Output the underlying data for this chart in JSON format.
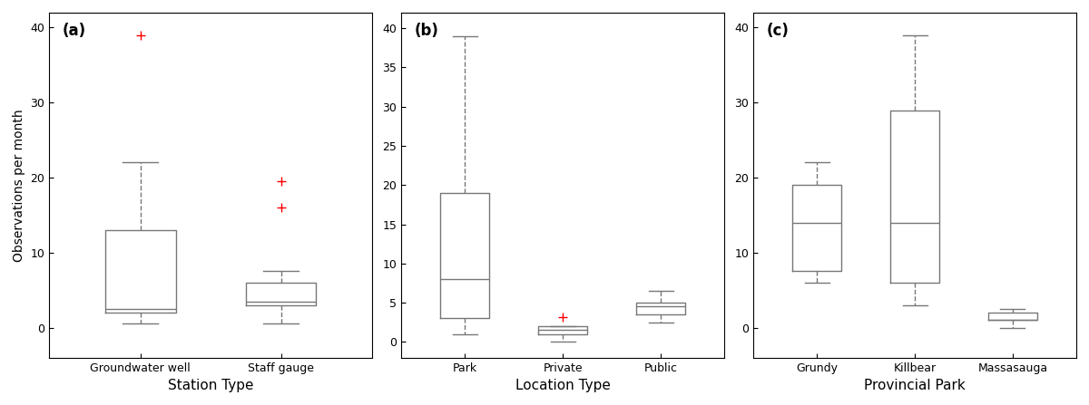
{
  "panel_a": {
    "label": "(a)",
    "xlabel": "Station Type",
    "ylabel": "Observations per month",
    "ylim": [
      -4,
      42
    ],
    "yticks": [
      0,
      10,
      20,
      30,
      40
    ],
    "categories": [
      "Groundwater well",
      "Staff gauge"
    ],
    "boxes": [
      {
        "q1": 2.0,
        "median": 2.5,
        "q3": 13.0,
        "whislo": 0.5,
        "whishi": 22.0,
        "fliers": [
          39.0
        ]
      },
      {
        "q1": 3.0,
        "median": 3.5,
        "q3": 6.0,
        "whislo": 0.5,
        "whishi": 7.5,
        "fliers": [
          16.0,
          19.5
        ]
      }
    ]
  },
  "panel_b": {
    "label": "(b)",
    "xlabel": "Location Type",
    "ylim": [
      -2,
      42
    ],
    "yticks": [
      0,
      5,
      10,
      15,
      20,
      25,
      30,
      35,
      40
    ],
    "categories": [
      "Park",
      "Private",
      "Public"
    ],
    "boxes": [
      {
        "q1": 3.0,
        "median": 8.0,
        "q3": 19.0,
        "whislo": 1.0,
        "whishi": 39.0,
        "fliers": []
      },
      {
        "q1": 1.0,
        "median": 1.5,
        "q3": 2.0,
        "whislo": 0.0,
        "whishi": 2.0,
        "fliers": [
          3.2
        ]
      },
      {
        "q1": 3.5,
        "median": 4.5,
        "q3": 5.0,
        "whislo": 2.5,
        "whishi": 6.5,
        "fliers": []
      }
    ]
  },
  "panel_c": {
    "label": "(c)",
    "xlabel": "Provincial Park",
    "ylim": [
      -4,
      42
    ],
    "yticks": [
      0,
      10,
      20,
      30,
      40
    ],
    "categories": [
      "Grundy",
      "Killbear",
      "Massasauga"
    ],
    "boxes": [
      {
        "q1": 7.5,
        "median": 14.0,
        "q3": 19.0,
        "whislo": 6.0,
        "whishi": 22.0,
        "fliers": []
      },
      {
        "q1": 6.0,
        "median": 14.0,
        "q3": 29.0,
        "whislo": 3.0,
        "whishi": 39.0,
        "fliers": []
      },
      {
        "q1": 1.0,
        "median": 1.0,
        "q3": 2.0,
        "whislo": 0.0,
        "whishi": 2.5,
        "fliers": []
      }
    ]
  },
  "box_color": "#777777",
  "flier_color": "#ff0000",
  "flier_marker": "+",
  "box_width": 0.5,
  "figsize": [
    12.0,
    4.47
  ],
  "dpi": 100
}
